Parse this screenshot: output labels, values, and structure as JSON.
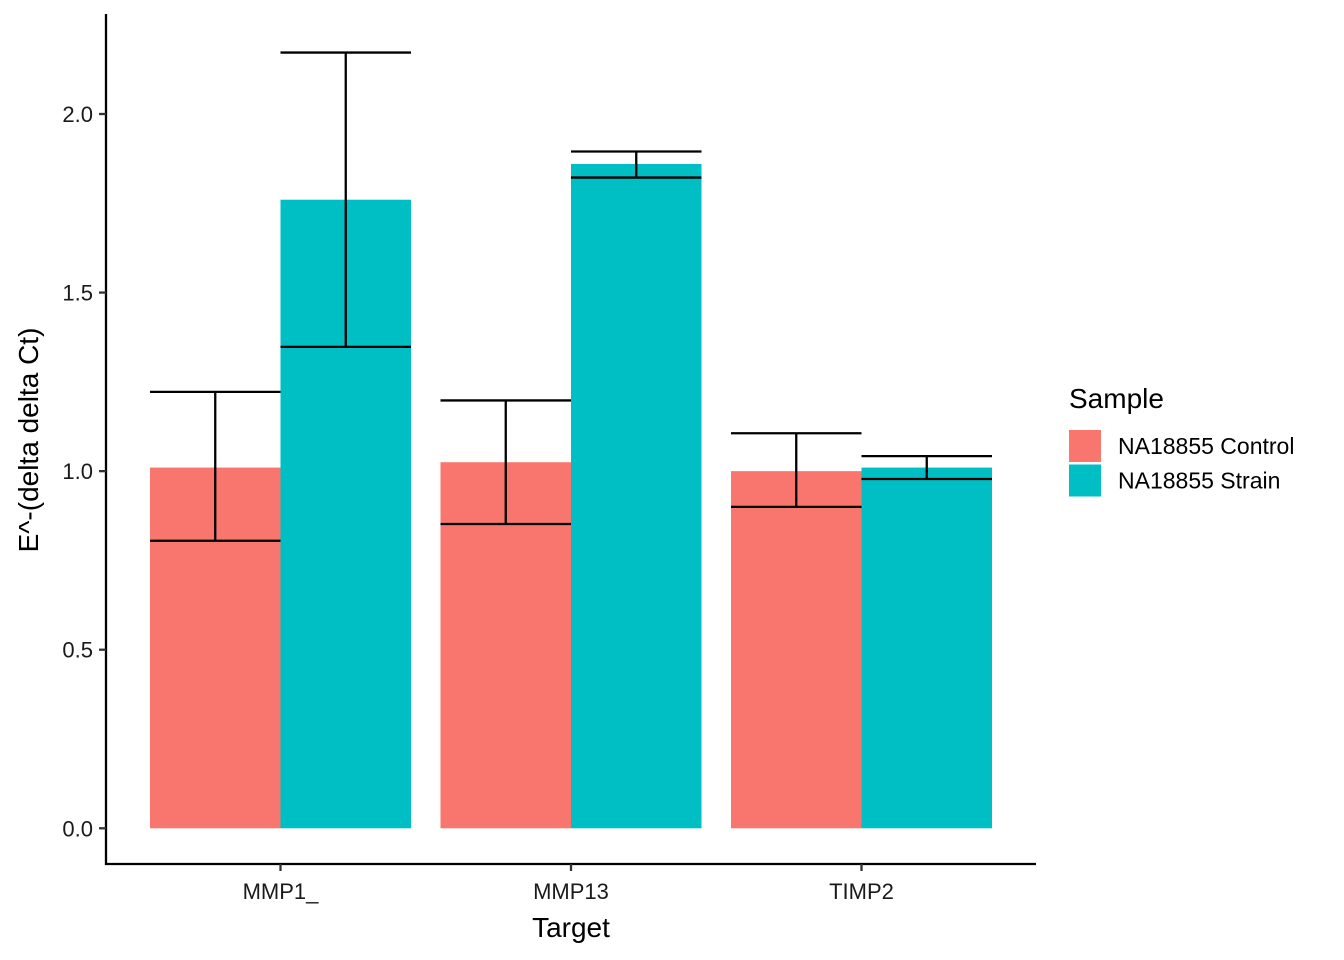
{
  "chart_data": {
    "type": "bar",
    "xlabel": "Target",
    "ylabel": "E^-(delta delta Ct)",
    "categories": [
      "MMP1_",
      "MMP13",
      "TIMP2"
    ],
    "ylim": [
      -0.1,
      2.28
    ],
    "yticks": [
      0.0,
      0.5,
      1.0,
      1.5,
      2.0
    ],
    "ytick_labels": [
      "0.0",
      "0.5",
      "1.0",
      "1.5",
      "2.0"
    ],
    "grid": false,
    "legend": {
      "title": "Sample",
      "position": "right"
    },
    "series": [
      {
        "name": "NA18855 Control",
        "color": "#F8766D",
        "values": [
          1.01,
          1.025,
          1.0
        ],
        "error_low": [
          0.805,
          0.852,
          0.9
        ],
        "error_high": [
          1.222,
          1.198,
          1.106
        ]
      },
      {
        "name": "NA18855 Strain",
        "color": "#00BFC4",
        "values": [
          1.76,
          1.86,
          1.01
        ],
        "error_low": [
          1.348,
          1.822,
          0.978
        ],
        "error_high": [
          2.172,
          1.895,
          1.042
        ]
      }
    ]
  }
}
